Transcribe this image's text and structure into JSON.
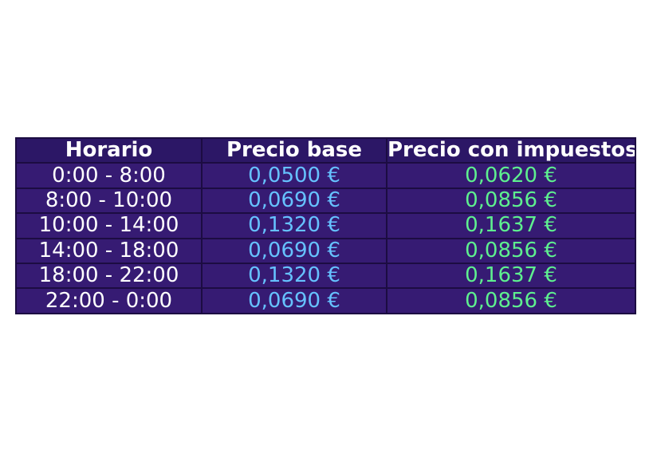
{
  "chart_data": {
    "type": "table",
    "columns": [
      "Horario",
      "Precio base",
      "Precio con impuestos"
    ],
    "rows": [
      [
        "0:00 - 8:00",
        "0,0500 €",
        "0,0620 €"
      ],
      [
        "8:00 - 10:00",
        "0,0690 €",
        "0,0856 €"
      ],
      [
        "10:00 - 14:00",
        "0,1320 €",
        "0,1637 €"
      ],
      [
        "14:00 - 18:00",
        "0,0690 €",
        "0,0856 €"
      ],
      [
        "18:00 - 22:00",
        "0,1320 €",
        "0,1637 €"
      ],
      [
        "22:00 - 0:00",
        "0,0690 €",
        "0,0856 €"
      ]
    ]
  },
  "colors": {
    "table_background": "#361b73",
    "header_background": "#2c1766",
    "border": "#1c0c42",
    "header_text": "#ffffff",
    "time_text": "#ffffff",
    "base_price_text": "#66c2ff",
    "tax_price_text": "#5ef08f"
  }
}
